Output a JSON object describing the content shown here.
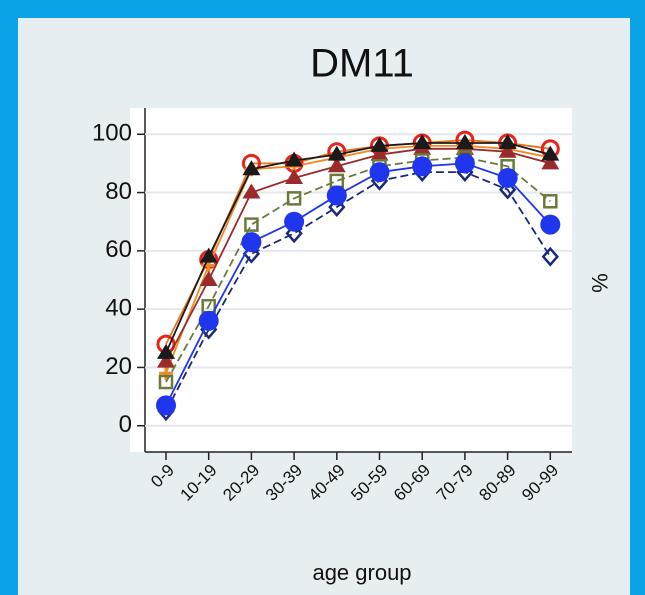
{
  "chart_data": {
    "type": "line",
    "title": "DM11",
    "x_label": "age group",
    "y2_label": "%",
    "categories": [
      "0-9",
      "10-19",
      "20-29",
      "30-39",
      "40-49",
      "50-59",
      "60-69",
      "70-79",
      "80-89",
      "90-99"
    ],
    "series": [
      {
        "color": "#e8731a",
        "marker_color": "#e8231a",
        "marker": "circle-open",
        "values": [
          28,
          57,
          90,
          90,
          94,
          96,
          97,
          98,
          97,
          95
        ]
      },
      {
        "color": "#f08a24",
        "marker": "plus",
        "values": [
          18,
          55,
          88,
          89,
          92,
          95,
          96,
          96,
          95,
          92
        ]
      },
      {
        "color": "#9b2b2b",
        "marker": "triangle",
        "values": [
          22,
          50,
          80,
          85,
          89,
          93,
          95,
          95,
          94,
          90
        ]
      },
      {
        "color": "#6b7a3a",
        "marker": "square-open",
        "values": [
          15,
          41,
          69,
          78,
          84,
          89,
          91,
          92,
          89,
          77
        ]
      },
      {
        "color": "#1a2a7a",
        "marker": "diamond-open",
        "values": [
          5,
          33,
          59,
          66,
          75,
          84,
          87,
          87,
          81,
          58
        ]
      },
      {
        "color": "#1f36ee",
        "marker": "circle",
        "values": [
          7,
          36,
          63,
          70,
          79,
          87,
          89,
          90,
          85,
          69
        ]
      },
      {
        "color": "#1a1a1a",
        "marker": "triangle",
        "values": [
          25,
          58,
          88,
          91,
          93,
          96,
          97,
          97,
          97,
          93
        ]
      }
    ],
    "ylim": [
      -9,
      109
    ],
    "yticks": [
      0,
      20,
      40,
      60,
      80,
      100
    ],
    "grid": true
  }
}
